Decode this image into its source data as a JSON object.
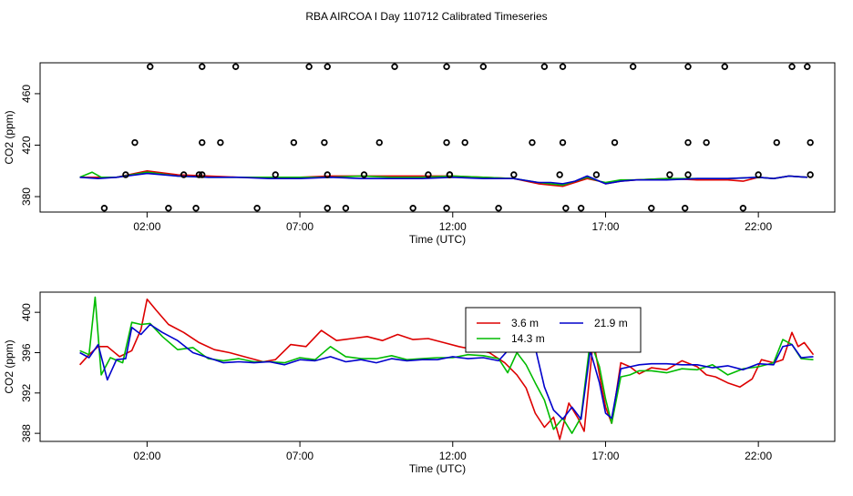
{
  "page": {
    "title": "RBA AIRCOA I  Day 110712  Calibrated Timeseries"
  },
  "chart_data": [
    {
      "type": "scatter+line",
      "title": "RBA AIRCOA I  Day 110712  Calibrated Timeseries",
      "xlabel": "Time (UTC)",
      "ylabel": "CO2 (ppm)",
      "xlim": [
        -1.5,
        24.5
      ],
      "ylim": [
        368,
        484
      ],
      "xticks": [
        2,
        7,
        12,
        17,
        22
      ],
      "xtick_labels": [
        "02:00",
        "07:00",
        "12:00",
        "17:00",
        "22:00"
      ],
      "yticks": [
        380,
        420,
        460
      ],
      "ytick_labels": [
        "380",
        "420",
        "460"
      ],
      "calibration_points": {
        "name": "calibration standards",
        "x": [
          0.6,
          1.3,
          1.6,
          2.1,
          2.7,
          3.2,
          3.6,
          3.7,
          3.8,
          3.8,
          3.8,
          4.4,
          4.9,
          5.6,
          6.2,
          6.8,
          7.3,
          7.8,
          7.9,
          7.9,
          7.9,
          8.5,
          9.1,
          9.6,
          10.1,
          10.7,
          11.2,
          11.8,
          11.8,
          11.8,
          11.9,
          11.9,
          12.4,
          13.0,
          13.5,
          14.0,
          14.6,
          15.0,
          15.5,
          15.6,
          15.6,
          15.7,
          16.2,
          16.7,
          17.3,
          17.9,
          18.5,
          19.1,
          19.6,
          19.7,
          19.7,
          19.7,
          20.3,
          20.9,
          21.5,
          22.0,
          22.6,
          23.1,
          23.6,
          23.7,
          23.7
        ],
        "y": [
          371,
          397,
          422,
          481,
          371,
          397,
          371,
          397,
          422,
          481,
          397,
          422,
          481,
          371,
          397,
          422,
          481,
          422,
          397,
          481,
          371,
          371,
          397,
          422,
          481,
          371,
          397,
          371,
          422,
          481,
          397,
          397,
          422,
          481,
          371,
          397,
          422,
          481,
          397,
          422,
          481,
          371,
          371,
          397,
          422,
          481,
          371,
          397,
          371,
          397,
          422,
          481,
          422,
          481,
          371,
          397,
          422,
          481,
          481,
          422,
          397
        ],
        "color": "#000000"
      },
      "series": [
        {
          "name": "3.6 m",
          "color": "#dd0000",
          "x": [
            -0.2,
            1.0,
            2.0,
            3.0,
            4.0,
            5.0,
            6.0,
            7.0,
            8.0,
            9.0,
            10.0,
            11.0,
            12.0,
            13.0,
            14.0,
            14.8,
            15.2,
            15.6,
            16.0,
            16.4,
            16.8,
            17.0,
            17.5,
            18.0,
            19.0,
            20.0,
            21.0,
            21.5,
            22.0,
            22.5,
            23.0,
            23.6
          ],
          "y": [
            395,
            395,
            400,
            397,
            396,
            395,
            395,
            395,
            396,
            396,
            396,
            396,
            396,
            395,
            394,
            390,
            389,
            388,
            391,
            394,
            392,
            390,
            392,
            393,
            394,
            393,
            393,
            392,
            395,
            394,
            396,
            395
          ]
        },
        {
          "name": "14.3 m",
          "color": "#00bb00",
          "x": [
            -0.2,
            0.2,
            0.5,
            1.0,
            2.0,
            3.0,
            4.0,
            5.0,
            6.0,
            7.0,
            8.0,
            9.0,
            10.0,
            11.0,
            12.0,
            13.0,
            14.0,
            14.8,
            15.2,
            15.6,
            16.0,
            16.4,
            16.8,
            17.0,
            17.5,
            18.0,
            19.0,
            20.0,
            21.0,
            22.0,
            22.5,
            23.0,
            23.6
          ],
          "y": [
            395,
            399,
            395,
            395,
            399,
            396,
            395,
            395,
            395,
            395,
            395,
            396,
            395,
            395,
            396,
            395,
            394,
            391,
            390,
            389,
            392,
            395,
            392,
            391,
            393,
            393,
            394,
            394,
            394,
            395,
            394,
            396,
            395
          ]
        },
        {
          "name": "21.9 m",
          "color": "#0000cc",
          "x": [
            -0.2,
            0.4,
            1.0,
            2.0,
            3.0,
            4.0,
            5.0,
            6.0,
            7.0,
            8.0,
            9.0,
            10.0,
            11.0,
            12.0,
            13.0,
            14.0,
            14.8,
            15.2,
            15.6,
            16.0,
            16.4,
            16.8,
            17.0,
            17.5,
            18.0,
            19.0,
            20.0,
            21.0,
            22.0,
            22.5,
            23.0,
            23.6
          ],
          "y": [
            395,
            394,
            395,
            398,
            396,
            395,
            395,
            394,
            394,
            395,
            394,
            394,
            394,
            395,
            394,
            394,
            391,
            391,
            390,
            392,
            396,
            392,
            390,
            392,
            393,
            393,
            394,
            394,
            395,
            394,
            396,
            395
          ]
        }
      ]
    },
    {
      "type": "line",
      "xlabel": "Time (UTC)",
      "ylabel": "CO2 (ppm)",
      "xlim": [
        -1.5,
        24.5
      ],
      "ylim": [
        387.2,
        402.0
      ],
      "xticks": [
        2,
        7,
        12,
        17,
        22
      ],
      "xtick_labels": [
        "02:00",
        "07:00",
        "12:00",
        "17:00",
        "22:00"
      ],
      "yticks": [
        388,
        392,
        396,
        400
      ],
      "ytick_labels": [
        "388",
        "392",
        "396",
        "400"
      ],
      "legend": "top-center",
      "series": [
        {
          "name": "3.6 m",
          "color": "#dd0000",
          "x": [
            -0.2,
            0.1,
            0.4,
            0.7,
            1.1,
            1.5,
            1.8,
            2.0,
            2.3,
            2.7,
            3.2,
            3.7,
            4.2,
            4.7,
            5.3,
            5.8,
            6.2,
            6.7,
            7.2,
            7.7,
            8.2,
            8.7,
            9.2,
            9.7,
            10.2,
            10.7,
            11.2,
            11.7,
            12.2,
            12.7,
            13.2,
            13.7,
            14.1,
            14.4,
            14.7,
            15.0,
            15.3,
            15.5,
            15.8,
            16.1,
            16.3,
            16.6,
            16.8,
            17.0,
            17.2,
            17.5,
            17.8,
            18.1,
            18.5,
            19.0,
            19.5,
            20.0,
            20.3,
            20.6,
            21.0,
            21.4,
            21.8,
            22.1,
            22.5,
            22.8,
            23.1,
            23.3,
            23.5,
            23.8
          ],
          "y": [
            394.8,
            395.8,
            396.6,
            396.6,
            395.6,
            396.2,
            398.3,
            401.3,
            400.2,
            398.8,
            398.0,
            397.0,
            396.3,
            396.0,
            395.5,
            395.1,
            395.3,
            396.8,
            396.6,
            398.2,
            397.2,
            397.4,
            397.6,
            397.2,
            397.8,
            397.3,
            397.4,
            397.0,
            396.6,
            396.3,
            396.0,
            395.0,
            393.8,
            392.5,
            390.0,
            388.6,
            389.6,
            387.4,
            391.0,
            389.5,
            388.2,
            397.3,
            393.8,
            390.6,
            389.0,
            395.0,
            394.6,
            393.9,
            394.5,
            394.3,
            395.2,
            394.6,
            393.8,
            393.6,
            393.0,
            392.6,
            393.4,
            395.3,
            395.0,
            395.3,
            398.0,
            396.6,
            397.0,
            395.8
          ]
        },
        {
          "name": "14.3 m",
          "color": "#00bb00",
          "x": [
            -0.2,
            0.1,
            0.3,
            0.5,
            0.8,
            1.2,
            1.5,
            1.8,
            2.1,
            2.5,
            3.0,
            3.5,
            4.0,
            4.5,
            5.0,
            5.5,
            6.0,
            6.5,
            7.0,
            7.5,
            8.0,
            8.5,
            9.0,
            9.5,
            10.0,
            10.5,
            11.0,
            11.5,
            12.0,
            12.5,
            13.0,
            13.5,
            13.8,
            14.1,
            14.4,
            14.7,
            15.0,
            15.3,
            15.6,
            15.9,
            16.2,
            16.5,
            16.8,
            17.0,
            17.2,
            17.5,
            17.8,
            18.1,
            18.5,
            19.0,
            19.5,
            20.0,
            20.5,
            21.0,
            21.5,
            22.0,
            22.5,
            22.8,
            23.1,
            23.4,
            23.8
          ],
          "y": [
            396.2,
            395.8,
            401.5,
            393.8,
            395.5,
            395.0,
            399.0,
            398.8,
            398.9,
            397.6,
            396.3,
            396.5,
            395.4,
            395.2,
            395.4,
            395.1,
            395.1,
            395.0,
            395.5,
            395.3,
            396.6,
            395.6,
            395.4,
            395.4,
            395.7,
            395.3,
            395.4,
            395.5,
            395.5,
            395.8,
            395.7,
            395.4,
            394.0,
            396.0,
            394.8,
            393.0,
            391.3,
            388.4,
            389.5,
            388.0,
            389.6,
            397.2,
            394.6,
            391.4,
            389.0,
            393.6,
            393.8,
            394.2,
            394.2,
            394.0,
            394.4,
            394.3,
            394.8,
            393.8,
            394.4,
            394.6,
            395.0,
            397.3,
            396.8,
            395.4,
            395.3
          ]
        },
        {
          "name": "21.9 m",
          "color": "#0000cc",
          "x": [
            -0.2,
            0.1,
            0.4,
            0.7,
            1.0,
            1.3,
            1.5,
            1.8,
            2.1,
            2.5,
            3.0,
            3.5,
            4.0,
            4.5,
            5.0,
            5.5,
            6.0,
            6.5,
            7.0,
            7.5,
            8.0,
            8.5,
            9.0,
            9.5,
            10.0,
            10.5,
            11.0,
            11.5,
            12.0,
            12.5,
            13.0,
            13.5,
            13.8,
            14.1,
            14.4,
            14.7,
            15.0,
            15.3,
            15.6,
            15.9,
            16.2,
            16.5,
            16.8,
            17.0,
            17.2,
            17.5,
            17.8,
            18.1,
            18.5,
            19.0,
            19.5,
            20.0,
            20.5,
            21.0,
            21.5,
            22.0,
            22.5,
            22.8,
            23.1,
            23.4,
            23.8
          ],
          "y": [
            396.0,
            395.5,
            396.8,
            393.3,
            395.3,
            395.4,
            398.5,
            397.8,
            398.8,
            398.0,
            397.2,
            396.0,
            395.5,
            395.0,
            395.1,
            395.0,
            395.1,
            394.8,
            395.3,
            395.2,
            395.6,
            395.1,
            395.3,
            395.0,
            395.4,
            395.2,
            395.3,
            395.3,
            395.6,
            395.4,
            395.5,
            395.2,
            396.2,
            396.8,
            396.7,
            396.5,
            392.6,
            390.3,
            389.4,
            390.6,
            389.4,
            396.2,
            393.0,
            390.0,
            389.5,
            394.4,
            394.6,
            394.8,
            394.9,
            394.9,
            394.8,
            394.8,
            394.5,
            394.7,
            394.3,
            394.9,
            394.8,
            396.6,
            396.8,
            395.5,
            395.6
          ]
        }
      ]
    }
  ]
}
